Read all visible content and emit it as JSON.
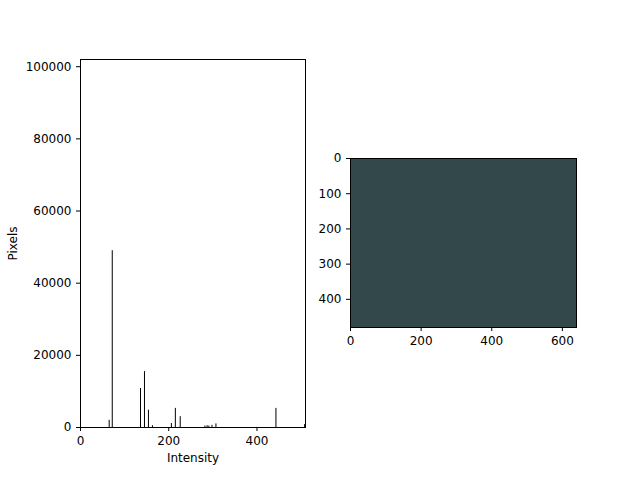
{
  "chart_data": [
    {
      "type": "bar",
      "xlabel": "Intensity",
      "ylabel": "Pixels",
      "x": [
        65,
        72,
        136,
        145,
        154,
        163,
        206,
        215,
        226,
        282,
        287,
        291,
        298,
        307,
        443,
        508
      ],
      "values": [
        2000,
        49000,
        10800,
        15500,
        4800,
        500,
        1100,
        5300,
        3000,
        400,
        500,
        400,
        600,
        1000,
        5300,
        800
      ],
      "color": "#000000",
      "xlim": [
        0,
        510
      ],
      "ylim": [
        0,
        102000
      ],
      "xticks": [
        0,
        200,
        400
      ],
      "yticks": [
        0,
        20000,
        40000,
        60000,
        80000,
        100000
      ]
    },
    {
      "type": "image",
      "color": "#33484b",
      "xlim": [
        0,
        640
      ],
      "ylim": [
        480,
        0
      ],
      "xticks": [
        0,
        200,
        400,
        600
      ],
      "yticks": [
        0,
        100,
        200,
        300,
        400
      ]
    }
  ]
}
